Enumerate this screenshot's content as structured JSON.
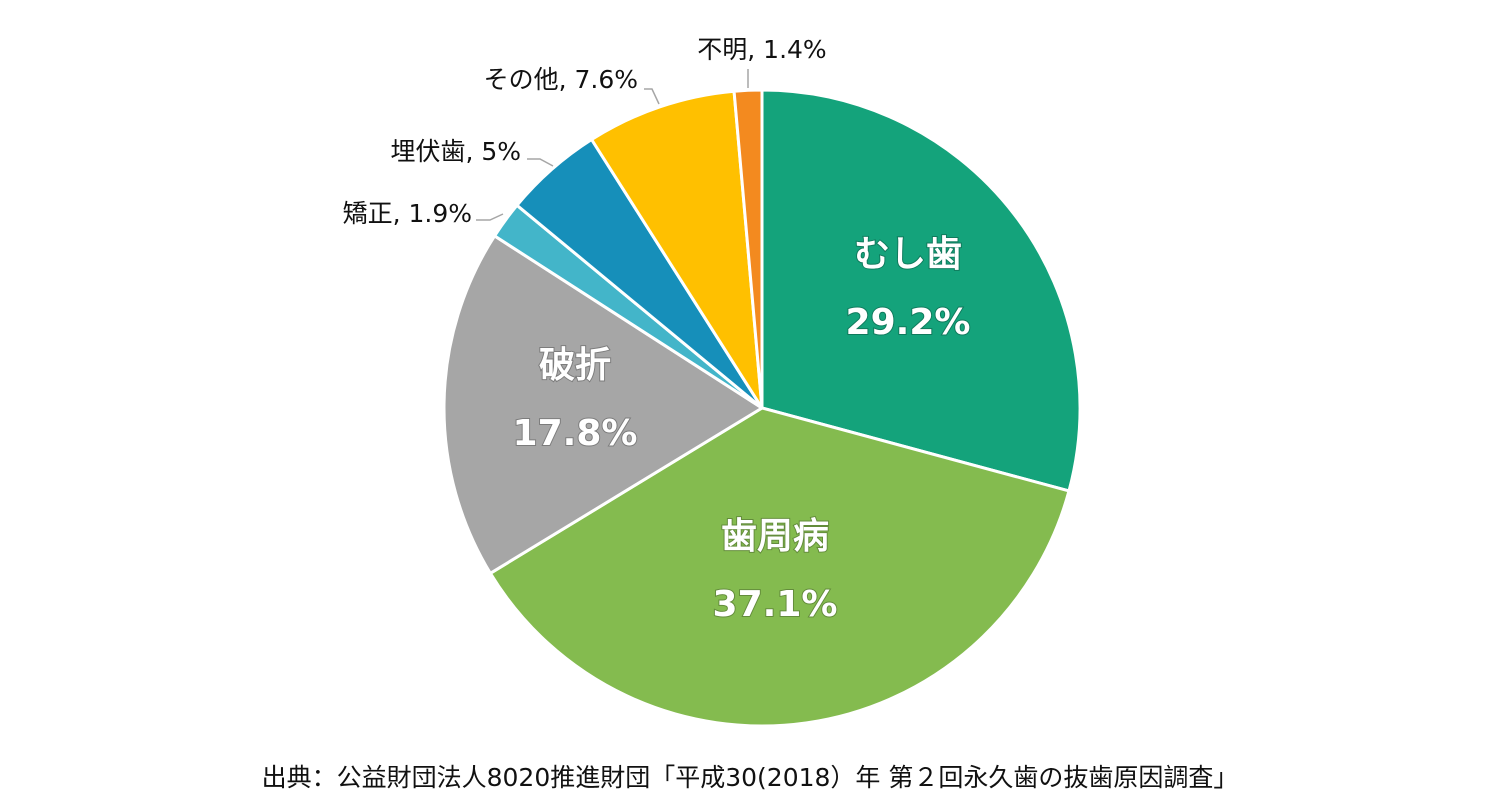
{
  "chart_data": {
    "type": "pie",
    "title": "",
    "start": "12 o'clock, clockwise",
    "slices": [
      {
        "name": "むし歯",
        "value": 29.2,
        "label": "29.2%",
        "color": "#14A37B",
        "label_position": "inside"
      },
      {
        "name": "歯周病",
        "value": 37.1,
        "label": "37.1%",
        "color": "#84BB4F",
        "label_position": "inside"
      },
      {
        "name": "破折",
        "value": 17.8,
        "label": "17.8%",
        "color": "#A6A6A6",
        "label_position": "inside"
      },
      {
        "name": "矯正",
        "value": 1.9,
        "label": "矯正, 1.9%",
        "color": "#43B5C9",
        "label_position": "outside"
      },
      {
        "name": "埋伏歯",
        "value": 5,
        "label": "埋伏歯, 5%",
        "color": "#168FBA",
        "label_position": "outside"
      },
      {
        "name": "その他",
        "value": 7.6,
        "label": "その他, 7.6%",
        "color": "#FFC000",
        "label_position": "outside"
      },
      {
        "name": "不明",
        "value": 1.4,
        "label": "不明, 1.4%",
        "color": "#F38A1F",
        "label_position": "outside"
      }
    ]
  },
  "source": "出典：公益財団法人8020推進財団「平成30(2018）年 第２回永久歯の抜歯原因調査」"
}
